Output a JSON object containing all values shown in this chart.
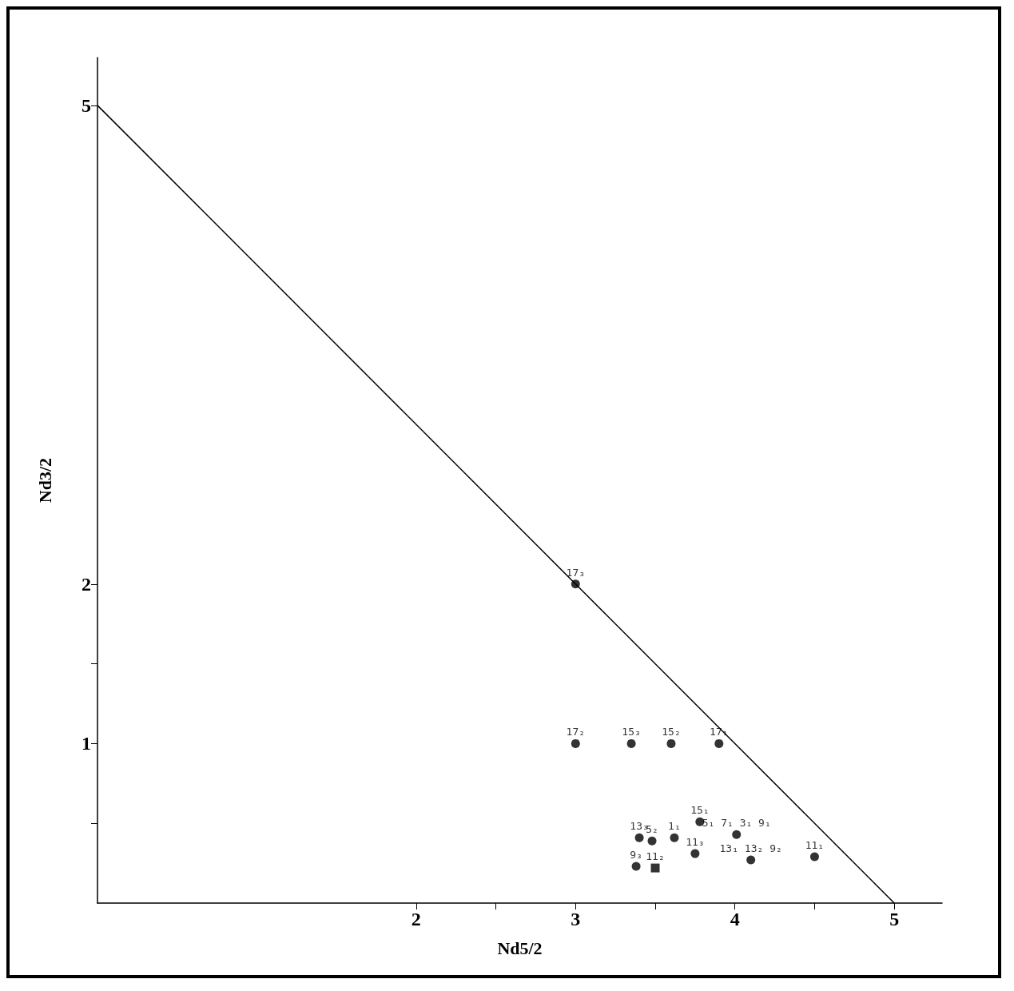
{
  "chart_data": {
    "type": "scatter",
    "xlabel": "Nd5/2",
    "ylabel": "Nd3/2",
    "xlim": [
      0,
      5.3
    ],
    "ylim": [
      0,
      5.3
    ],
    "xticks": [
      2,
      {
        "value": 2.5,
        "label": null
      },
      3,
      {
        "value": 3.5,
        "label": null
      },
      4,
      {
        "value": 4.5,
        "label": null
      },
      5
    ],
    "yticks": [
      {
        "value": 0.5,
        "label": null
      },
      1,
      {
        "value": 1.5,
        "label": null
      },
      2,
      5
    ],
    "grid": false,
    "series": [
      {
        "color": "#000000",
        "marker": "circle",
        "x": [
          3.0,
          3.0,
          3.35,
          3.6,
          3.9,
          3.78,
          3.4,
          3.48,
          3.62,
          3.75,
          3.38,
          4.01,
          4.1,
          4.5
        ],
        "values": [
          2.0,
          1.0,
          1.0,
          1.0,
          1.0,
          0.51,
          0.41,
          0.39,
          0.41,
          0.31,
          0.23,
          0.43,
          0.27,
          0.29
        ]
      },
      {
        "color": "#000000",
        "marker": "square",
        "x": [
          3.5
        ],
        "values": [
          0.22
        ]
      },
      {
        "type": "line",
        "color": "#000000",
        "marker": "none",
        "line_style": "solid",
        "x": [
          0,
          5
        ],
        "values": [
          5,
          0
        ]
      }
    ],
    "annotations": [
      {
        "text": "17₃",
        "x": 3.0,
        "y": 2.0
      },
      {
        "text": "17₂",
        "x": 3.0,
        "y": 1.0
      },
      {
        "text": "15₃",
        "x": 3.35,
        "y": 1.0
      },
      {
        "text": "15₂",
        "x": 3.6,
        "y": 1.0
      },
      {
        "text": "17₁",
        "x": 3.9,
        "y": 1.0
      },
      {
        "text": "15₁",
        "x": 3.78,
        "y": 0.51
      },
      {
        "text": "13₃",
        "x": 3.4,
        "y": 0.41
      },
      {
        "text": "5₂",
        "x": 3.48,
        "y": 0.39
      },
      {
        "text": "1₁",
        "x": 3.62,
        "y": 0.41
      },
      {
        "text": "11₃",
        "x": 3.75,
        "y": 0.31
      },
      {
        "text": "9₃",
        "x": 3.38,
        "y": 0.23
      },
      {
        "text": "11₂",
        "x": 3.5,
        "y": 0.22
      },
      {
        "text": "5₁ 7₁ 3₁ 9₁",
        "x": 4.01,
        "y": 0.43
      },
      {
        "text": "13₁ 13₂ 9₂",
        "x": 4.1,
        "y": 0.27
      },
      {
        "text": "11₁",
        "x": 4.5,
        "y": 0.29
      }
    ]
  }
}
